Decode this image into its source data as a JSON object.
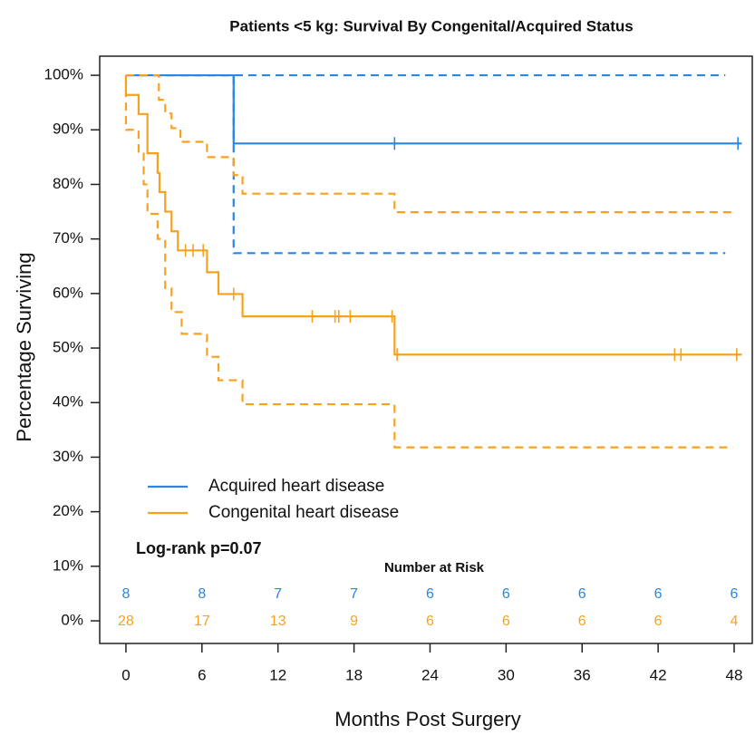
{
  "chart_data": {
    "type": "km",
    "title": "Patients <5 kg: Survival By Congenital/Acquired Status",
    "xlabel": "Months Post Surgery",
    "ylabel": "Percentage Surviving",
    "xlim": [
      -2.07,
      49.43
    ],
    "ylim": [
      -4.15,
      103.5
    ],
    "xticks": [
      0,
      6,
      12,
      18,
      24,
      30,
      36,
      42,
      48
    ],
    "yticks": [
      {
        "value": 0,
        "label": "0%"
      },
      {
        "value": 10,
        "label": "10%"
      },
      {
        "value": 20,
        "label": "20%"
      },
      {
        "value": 30,
        "label": "30%"
      },
      {
        "value": 40,
        "label": "40%"
      },
      {
        "value": 50,
        "label": "50%"
      },
      {
        "value": 60,
        "label": "60%"
      },
      {
        "value": 70,
        "label": "70%"
      },
      {
        "value": 80,
        "label": "80%"
      },
      {
        "value": 90,
        "label": "90%"
      },
      {
        "value": 100,
        "label": "100%"
      }
    ],
    "legend": "bottom-left",
    "annotation": "Log-rank p=0.07",
    "series": [
      {
        "name": "Acquired heart disease",
        "color": "#2a86e0",
        "x": [
          0,
          8.5,
          48.6
        ],
        "values": [
          100,
          87.5,
          87.5
        ],
        "censor_x": [
          21.2,
          48.3
        ],
        "censor_values": [
          87.5,
          87.5
        ],
        "ci_upper": {
          "x": [
            0,
            47.3
          ],
          "values": [
            100,
            100
          ]
        },
        "ci_lower": {
          "x": [
            0,
            8.5,
            47.3
          ],
          "values": [
            100,
            67.4,
            67.4
          ]
        }
      },
      {
        "name": "Congenital heart disease",
        "color": "#f7a21e",
        "x": [
          0,
          0,
          1.0,
          1.7,
          2.5,
          2.65,
          3.1,
          3.6,
          4.1,
          6.4,
          7.3,
          9.2,
          21.2,
          48.6
        ],
        "values": [
          100,
          96.4,
          92.9,
          85.7,
          82.1,
          78.6,
          75.0,
          71.4,
          67.9,
          63.9,
          59.9,
          55.8,
          48.8,
          48.8
        ],
        "censor_x": [
          4.7,
          5.3,
          6.1,
          8.5,
          14.7,
          16.5,
          16.8,
          17.7,
          21.0,
          21.4,
          43.3,
          43.8,
          48.2
        ],
        "censor_values": [
          67.9,
          67.9,
          67.9,
          59.9,
          55.8,
          55.8,
          55.8,
          55.8,
          55.8,
          48.8,
          48.8,
          48.8,
          48.8
        ],
        "ci_upper": {
          "x": [
            0,
            2.6,
            3.1,
            3.6,
            4.3,
            6.4,
            8.5,
            9.2,
            21.2,
            47.9
          ],
          "values": [
            100,
            95.5,
            93,
            90.3,
            87.8,
            85,
            81.7,
            78.3,
            74.9,
            74.9
          ]
        },
        "ci_lower": {
          "x": [
            0,
            0,
            1.0,
            1.4,
            1.7,
            2.5,
            3.1,
            3.6,
            4.4,
            6.4,
            7.3,
            9.2,
            21.2,
            47.9
          ],
          "values": [
            100,
            90,
            86,
            80,
            74.6,
            70,
            61,
            56.6,
            52.6,
            48.4,
            44.1,
            39.7,
            31.8,
            31.8
          ]
        }
      }
    ],
    "risk_table": {
      "title": "Number at Risk",
      "x": [
        0,
        6,
        12,
        18,
        24,
        30,
        36,
        42,
        48
      ],
      "rows": [
        {
          "color": "#2a86e0",
          "values": [
            8,
            8,
            7,
            7,
            6,
            6,
            6,
            6,
            6
          ]
        },
        {
          "color": "#f7a21e",
          "values": [
            28,
            17,
            13,
            9,
            6,
            6,
            6,
            6,
            4
          ]
        }
      ]
    }
  }
}
